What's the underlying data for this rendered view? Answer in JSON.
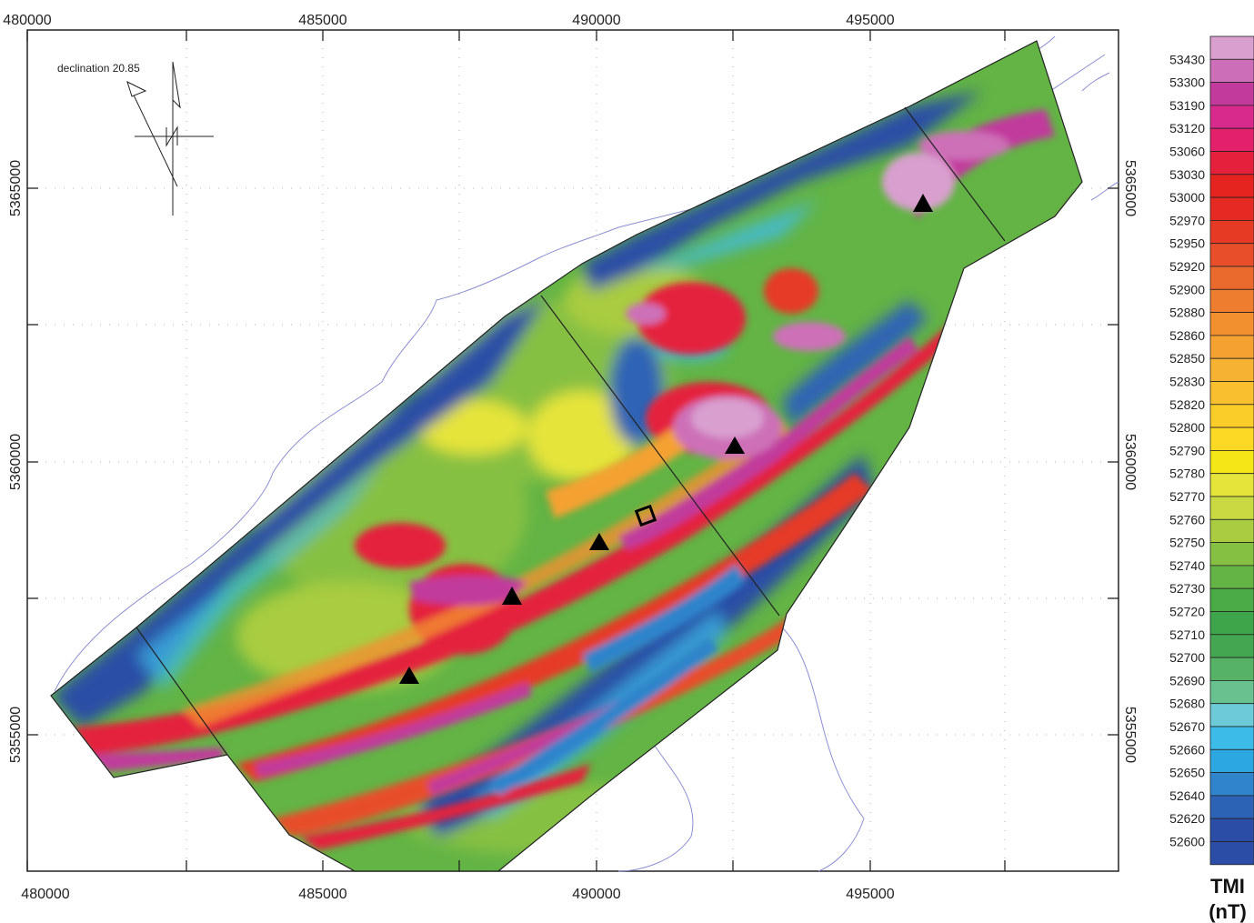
{
  "map": {
    "declination_label": "declination 20.85",
    "x_ticks_top": [
      "480000",
      "485000",
      "490000",
      "495000"
    ],
    "x_ticks_bottom": [
      "480000",
      "485000",
      "490000",
      "495000"
    ],
    "y_ticks_left": [
      "5365000",
      "5360000",
      "5355000"
    ],
    "y_ticks_right": [
      "5365000",
      "5360000",
      "5355000"
    ]
  },
  "legend": {
    "title_line1": "TMI",
    "title_line2": "(nT)",
    "entries": [
      {
        "value": "53430",
        "color": "#d99fcf"
      },
      {
        "value": "53300",
        "color": "#cd6fb8"
      },
      {
        "value": "53190",
        "color": "#c13a9c"
      },
      {
        "value": "53120",
        "color": "#d82a8c"
      },
      {
        "value": "53060",
        "color": "#e3206a"
      },
      {
        "value": "53030",
        "color": "#e4203c"
      },
      {
        "value": "53000",
        "color": "#e5241f"
      },
      {
        "value": "52970",
        "color": "#e42a22"
      },
      {
        "value": "52950",
        "color": "#e63a25"
      },
      {
        "value": "52920",
        "color": "#e84e2a"
      },
      {
        "value": "52900",
        "color": "#ea6a2e"
      },
      {
        "value": "52880",
        "color": "#ee7d2f"
      },
      {
        "value": "52860",
        "color": "#f29030"
      },
      {
        "value": "52850",
        "color": "#f4a132"
      },
      {
        "value": "52830",
        "color": "#f6b233"
      },
      {
        "value": "52820",
        "color": "#f8c02f"
      },
      {
        "value": "52800",
        "color": "#facd29"
      },
      {
        "value": "52790",
        "color": "#fcd924"
      },
      {
        "value": "52780",
        "color": "#f5e618"
      },
      {
        "value": "52770",
        "color": "#e5e43a"
      },
      {
        "value": "52760",
        "color": "#c9d941"
      },
      {
        "value": "52750",
        "color": "#a9cc40"
      },
      {
        "value": "52740",
        "color": "#86c042"
      },
      {
        "value": "52730",
        "color": "#63b445"
      },
      {
        "value": "52720",
        "color": "#4aab47"
      },
      {
        "value": "52710",
        "color": "#3ea54a"
      },
      {
        "value": "52700",
        "color": "#44a650"
      },
      {
        "value": "52690",
        "color": "#56b366"
      },
      {
        "value": "52680",
        "color": "#67c290"
      },
      {
        "value": "52670",
        "color": "#6ccbd7"
      },
      {
        "value": "52660",
        "color": "#3dbbe8"
      },
      {
        "value": "52650",
        "color": "#2da7e0"
      },
      {
        "value": "52640",
        "color": "#2f84cb"
      },
      {
        "value": "52620",
        "color": "#2d63b5"
      },
      {
        "value": "52600",
        "color": "#2c4da6"
      }
    ]
  },
  "colors": {
    "magenta": "#c13a9c",
    "pink": "#d99fcf",
    "red": "#e4203c",
    "orange": "#f29030",
    "yellow": "#f5e618",
    "lightgreen": "#a9cc40",
    "green": "#4aab47",
    "cyan": "#6ccbd7",
    "blue": "#2f84cb",
    "darkblue": "#2c4da6",
    "coast": "#8a8fd0"
  }
}
